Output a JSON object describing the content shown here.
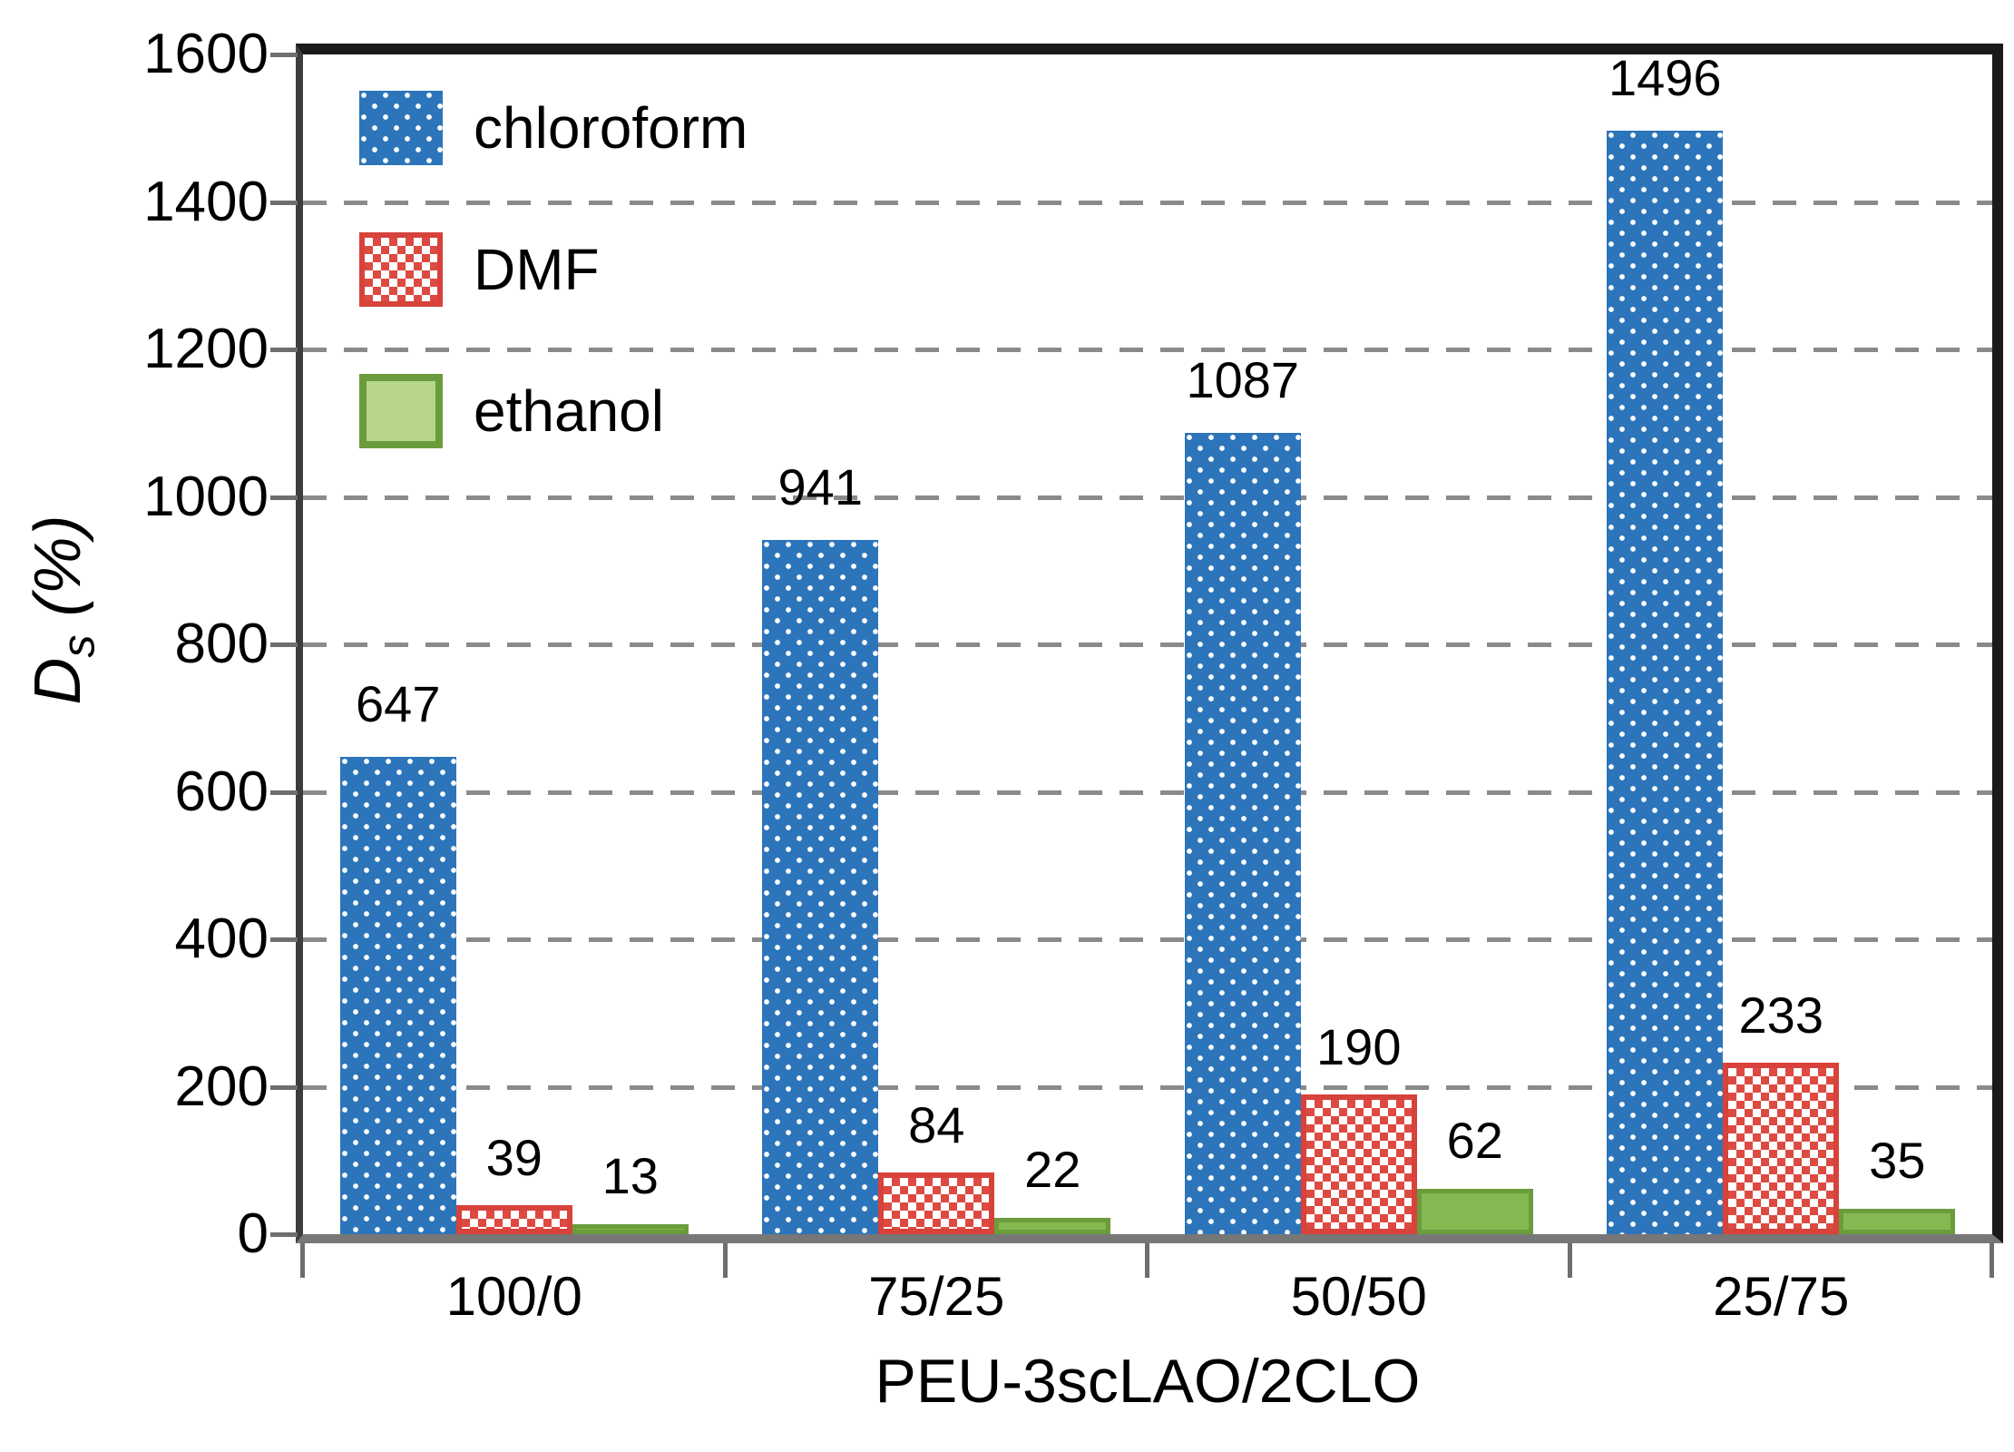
{
  "chart_data": {
    "type": "bar",
    "title": "",
    "xlabel": "PEU-3scLAO/2CLO",
    "ylabel": "Ds (%)",
    "ylabel_parts": {
      "symbol": "D",
      "subscript": "s",
      "unit": " (%)"
    },
    "ylim": [
      0,
      1600
    ],
    "ytick_step": 200,
    "ytick_labels": [
      "0",
      "200",
      "400",
      "600",
      "800",
      "1000",
      "1200",
      "1400",
      "1600"
    ],
    "grid": "dashed horizontal gridlines every 200",
    "legend_position": "top-left inside plot",
    "show_value_labels": true,
    "categories": [
      "100/0",
      "75/25",
      "50/50",
      "25/75"
    ],
    "series": [
      {
        "name": "chloroform",
        "pattern": "blue with white dots",
        "color": "#2D75BA",
        "values": [
          647,
          941,
          1087,
          1496
        ]
      },
      {
        "name": "DMF",
        "pattern": "red-white checkerboard",
        "color": "#DC4A42",
        "border_color": "#D7423B",
        "values": [
          39,
          84,
          190,
          233
        ]
      },
      {
        "name": "ethanol",
        "pattern": "solid green",
        "color": "#85B850",
        "border_color": "#6B9C3C",
        "legend_fill": "#B7D68C",
        "values": [
          13,
          22,
          62,
          35
        ]
      }
    ],
    "colors": {
      "gridline": "#8A8A8A",
      "axis": "#1A1A1A",
      "baseline": "#777777",
      "text": "#000000"
    }
  },
  "legend": {
    "items": [
      {
        "label": "chloroform"
      },
      {
        "label": "DMF"
      },
      {
        "label": "ethanol"
      }
    ]
  }
}
